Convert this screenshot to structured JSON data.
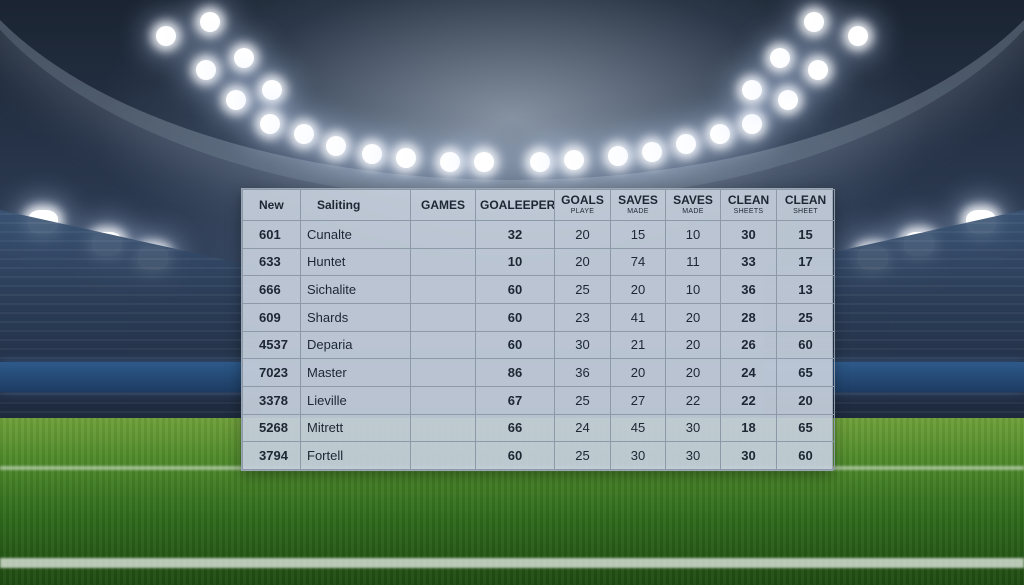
{
  "headers": [
    {
      "main": "New",
      "sub": ""
    },
    {
      "main": "Saliting",
      "sub": ""
    },
    {
      "main": "GAMES",
      "sub": ""
    },
    {
      "main": "GOALEEPER",
      "sub": ""
    },
    {
      "main": "GOALS",
      "sub": "PLAYE"
    },
    {
      "main": "SAVES",
      "sub": "MADE"
    },
    {
      "main": "SAVES",
      "sub": "MADE"
    },
    {
      "main": "CLEAN",
      "sub": "SHEETS"
    },
    {
      "main": "CLEAN",
      "sub": "SHEET"
    }
  ],
  "rows": [
    [
      "601",
      "Cunalte",
      "",
      "32",
      "20",
      "15",
      "10",
      "30",
      "15"
    ],
    [
      "633",
      "Huntet",
      "",
      "10",
      "20",
      "74",
      "11",
      "33",
      "17"
    ],
    [
      "666",
      "Sichalite",
      "",
      "60",
      "25",
      "20",
      "10",
      "36",
      "13"
    ],
    [
      "609",
      "Shards",
      "",
      "60",
      "23",
      "41",
      "20",
      "28",
      "25"
    ],
    [
      "4537",
      "Deparia",
      "",
      "60",
      "30",
      "21",
      "20",
      "26",
      "60"
    ],
    [
      "7023",
      "Master",
      "",
      "86",
      "36",
      "20",
      "20",
      "24",
      "65"
    ],
    [
      "3378",
      "Lieville",
      "",
      "67",
      "25",
      "27",
      "22",
      "22",
      "20"
    ],
    [
      "5268",
      "Mitrett",
      "",
      "66",
      "24",
      "45",
      "30",
      "18",
      "65"
    ],
    [
      "3794",
      "Fortell",
      "",
      "60",
      "25",
      "30",
      "30",
      "30",
      "60"
    ]
  ]
}
